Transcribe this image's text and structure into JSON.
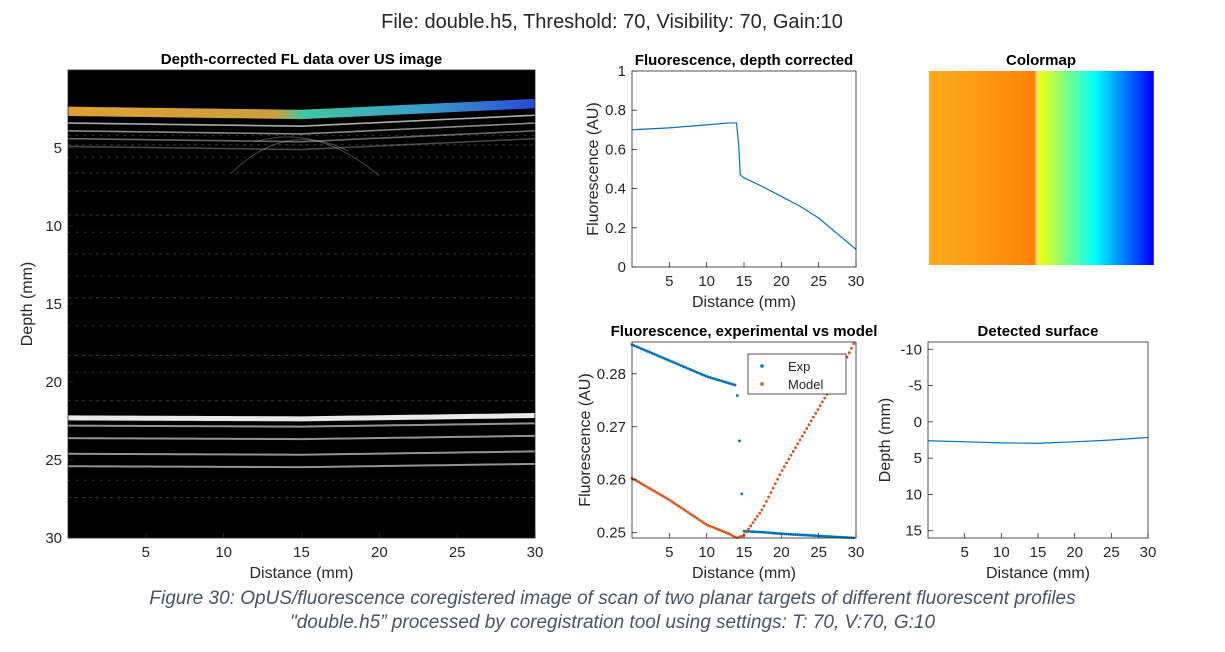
{
  "figure": {
    "suptitle": "File: double.h5, Threshold: 70, Visibility: 70, Gain:10"
  },
  "caption": {
    "line1": "Figure 30: OpUS/fluorescence coregistered image of scan of two planar targets of different fluorescent profiles",
    "line2": "\"double.h5” processed by coregistration tool using settings: T: 70, V:70, G:10"
  },
  "colors": {
    "exp": "#0072bd",
    "model": "#d95319",
    "axis": "#262626",
    "us_background": "#000000"
  },
  "chart_data": [
    {
      "id": "us",
      "type": "heatmap",
      "title": "Depth-corrected FL data over US image",
      "xlabel": "Distance (mm)",
      "ylabel": "Depth (mm)",
      "xlim": [
        0,
        30
      ],
      "ylim": [
        0,
        30
      ],
      "y_reversed": true,
      "xticks": [
        5,
        10,
        15,
        20,
        25,
        30
      ],
      "yticks": [
        5,
        10,
        15,
        20,
        25,
        30
      ],
      "surface_depth": [
        [
          0,
          2.8
        ],
        [
          15,
          3.0
        ],
        [
          30,
          2.3
        ]
      ],
      "bright_bands_depth": [
        22.3,
        22.8,
        23.6,
        24.6,
        25.4
      ],
      "colormap": "jet"
    },
    {
      "id": "fl",
      "type": "line",
      "title": "Fluorescence, depth corrected",
      "xlabel": "Distance (mm)",
      "ylabel": "Fluorescence (AU)",
      "xlim": [
        0,
        30
      ],
      "ylim": [
        0,
        1
      ],
      "xticks": [
        5,
        10,
        15,
        20,
        25,
        30
      ],
      "yticks": [
        0,
        0.2,
        0.4,
        0.6,
        0.8,
        1
      ],
      "ytick_labels": [
        "0",
        "0.2",
        "0.4",
        "0.6",
        "0.8",
        "1"
      ],
      "series": [
        {
          "x": [
            0,
            5,
            10,
            13,
            14,
            14.3,
            14.5,
            15,
            17.5,
            20,
            22.5,
            25,
            27.5,
            30
          ],
          "y": [
            0.7,
            0.71,
            0.725,
            0.735,
            0.735,
            0.62,
            0.47,
            0.455,
            0.41,
            0.36,
            0.31,
            0.25,
            0.17,
            0.09
          ]
        }
      ]
    },
    {
      "id": "cmap",
      "type": "heatmap",
      "title": "Colormap",
      "colormap": "jet",
      "jet_range": [
        0.68,
        0.95
      ],
      "step_at_fraction": 0.48
    },
    {
      "id": "expmodel",
      "type": "scatter",
      "title": "Fluorescence, experimental vs model",
      "xlabel": "Distance (mm)",
      "ylabel": "Fluorescence (AU)",
      "xlim": [
        0,
        30
      ],
      "ylim": [
        0.249,
        0.286
      ],
      "xticks": [
        5,
        10,
        15,
        20,
        25,
        30
      ],
      "yticks": [
        0.25,
        0.26,
        0.27,
        0.28
      ],
      "legend": "top-right",
      "series": [
        {
          "name": "Exp",
          "x": [
            0,
            5,
            10,
            13.5,
            14,
            14.2,
            14.5,
            14.8,
            15,
            17.5,
            20,
            22.5,
            25,
            27.5,
            30
          ],
          "y": [
            0.2855,
            0.2825,
            0.2795,
            0.278,
            0.2778,
            0.274,
            0.264,
            0.254,
            0.2503,
            0.2501,
            0.2498,
            0.2496,
            0.2494,
            0.2492,
            0.249
          ]
        },
        {
          "name": "Model",
          "x": [
            0,
            5,
            10,
            13,
            14,
            15,
            17.5,
            20,
            22.5,
            25,
            27.5,
            30
          ],
          "y": [
            0.2603,
            0.2562,
            0.2515,
            0.2498,
            0.249,
            0.2495,
            0.2545,
            0.2615,
            0.2675,
            0.2735,
            0.2795,
            0.2865
          ]
        }
      ]
    },
    {
      "id": "surf",
      "type": "line",
      "title": "Detected surface",
      "xlabel": "Distance (mm)",
      "ylabel": "Depth (mm)",
      "xlim": [
        0,
        30
      ],
      "ylim": [
        -11,
        16
      ],
      "y_reversed": true,
      "xticks": [
        5,
        10,
        15,
        20,
        25,
        30
      ],
      "yticks": [
        -10,
        -5,
        0,
        5,
        10,
        15
      ],
      "series": [
        {
          "x": [
            0,
            5,
            10,
            15,
            20,
            25,
            30
          ],
          "y": [
            2.6,
            2.75,
            2.9,
            2.95,
            2.75,
            2.5,
            2.15
          ]
        }
      ]
    }
  ]
}
